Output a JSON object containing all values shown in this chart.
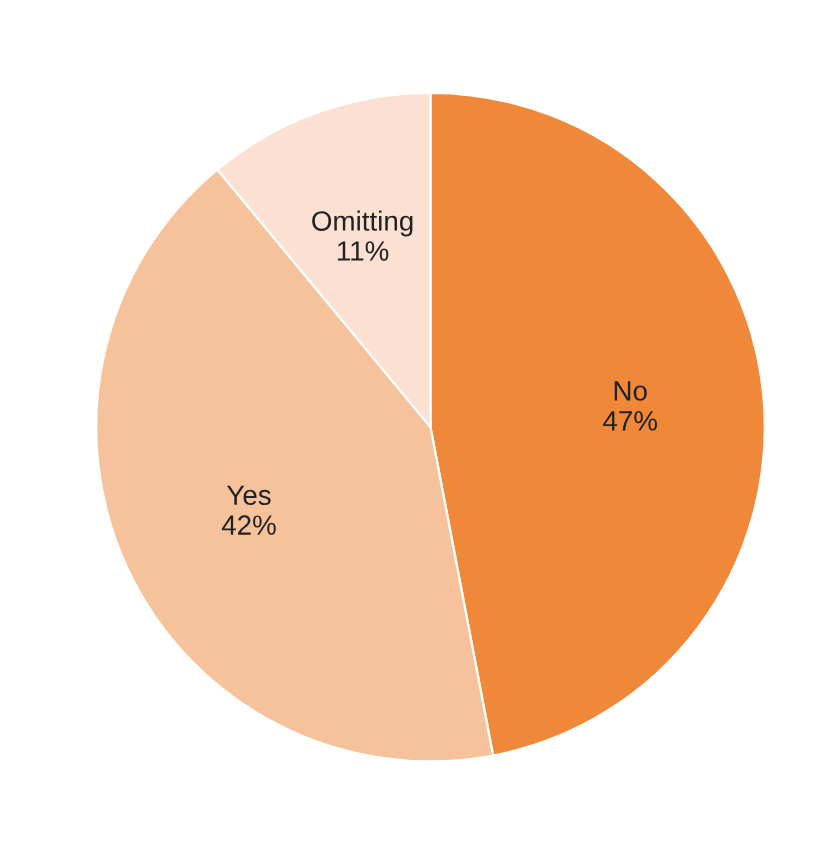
{
  "chart_data": {
    "type": "pie",
    "categories": [
      "No",
      "Yes",
      "Omitting"
    ],
    "values": [
      47,
      42,
      11
    ],
    "colors": [
      "#f0883a",
      "#f5c29c",
      "#fce1d2"
    ],
    "value_labels": [
      "47%",
      "42%",
      "11%"
    ],
    "legend": false
  }
}
